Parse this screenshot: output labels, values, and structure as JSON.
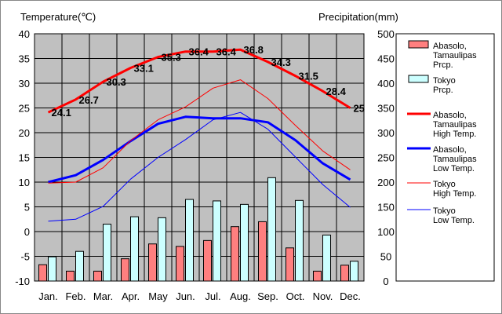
{
  "chart_data": {
    "type": "bar+line",
    "left_axis_title": "Temperature(℃)",
    "right_axis_title": "Precipitation(mm)",
    "categories": [
      "Jan.",
      "Feb.",
      "Mar.",
      "Apr.",
      "May",
      "Jun.",
      "Jul.",
      "Aug.",
      "Sep.",
      "Oct.",
      "Nov.",
      "Dec."
    ],
    "temp_ylim": [
      -10,
      40
    ],
    "temp_ticks": [
      "40",
      "35",
      "30",
      "25",
      "20",
      "15",
      "10",
      "5",
      "0",
      "-5",
      "-10"
    ],
    "precip_ylim": [
      0,
      500
    ],
    "precip_ticks": [
      "500",
      "450",
      "400",
      "350",
      "300",
      "250",
      "200",
      "150",
      "100",
      "50",
      "0"
    ],
    "grid": true,
    "plot_background": "#c0c0c0",
    "bar_series": [
      {
        "name": "Abasolo, Tamaulipas Prcp.",
        "color": "#ff7f7f",
        "values": [
          33,
          20,
          20,
          45,
          75,
          70,
          82,
          110,
          120,
          67,
          20,
          32
        ]
      },
      {
        "name": "Tokyo Prcp.",
        "color": "#ccffff",
        "values": [
          49,
          60,
          115,
          130,
          128,
          165,
          162,
          155,
          209,
          163,
          93,
          40
        ]
      }
    ],
    "line_series": [
      {
        "name": "Abasolo, Tamaulipas High Temp.",
        "color": "#ff0000",
        "width": 3,
        "values": [
          24.1,
          26.7,
          30.3,
          33.1,
          35.3,
          36.4,
          36.4,
          36.8,
          34.3,
          31.5,
          28.4,
          25
        ],
        "labels": [
          "24.1",
          "26.7",
          "30.3",
          "33.1",
          "35.3",
          "36.4",
          "36.4",
          "36.8",
          "34.3",
          "31.5",
          "28.4",
          "25"
        ]
      },
      {
        "name": "Abasolo, Tamaulipas Low Temp.",
        "color": "#0000ff",
        "width": 3,
        "values": [
          10,
          11.4,
          14.5,
          18.3,
          21.8,
          23.2,
          22.9,
          22.9,
          22.1,
          18.5,
          13.8,
          10.5
        ]
      },
      {
        "name": "Tokyo High Temp.",
        "color": "#ff0000",
        "width": 1,
        "values": [
          9.8,
          10,
          12.9,
          18.4,
          22.6,
          25.2,
          29,
          30.7,
          26.9,
          21.5,
          16.3,
          12.5
        ]
      },
      {
        "name": "Tokyo Low Temp.",
        "color": "#0000ff",
        "width": 1,
        "values": [
          2.1,
          2.5,
          5.1,
          10.6,
          15,
          18.6,
          22.6,
          24.1,
          20.7,
          15.1,
          9.5,
          4.9
        ]
      }
    ],
    "legend": {
      "position": "right",
      "items": [
        {
          "kind": "bar",
          "color": "#ff7f7f",
          "lines": [
            "Abasolo,",
            "Tamaulipas",
            "Prcp."
          ]
        },
        {
          "kind": "bar",
          "color": "#ccffff",
          "lines": [
            "Tokyo",
            "Prcp."
          ]
        },
        {
          "kind": "line",
          "color": "#ff0000",
          "width": 3,
          "lines": [
            "Abasolo,",
            "Tamaulipas",
            "High Temp."
          ]
        },
        {
          "kind": "line",
          "color": "#0000ff",
          "width": 3,
          "lines": [
            "Abasolo,",
            "Tamaulipas",
            "Low Temp."
          ]
        },
        {
          "kind": "line",
          "color": "#ff0000",
          "width": 1,
          "lines": [
            "Tokyo",
            "High Temp."
          ]
        },
        {
          "kind": "line",
          "color": "#0000ff",
          "width": 1,
          "lines": [
            "Tokyo",
            "Low Temp."
          ]
        }
      ]
    }
  }
}
